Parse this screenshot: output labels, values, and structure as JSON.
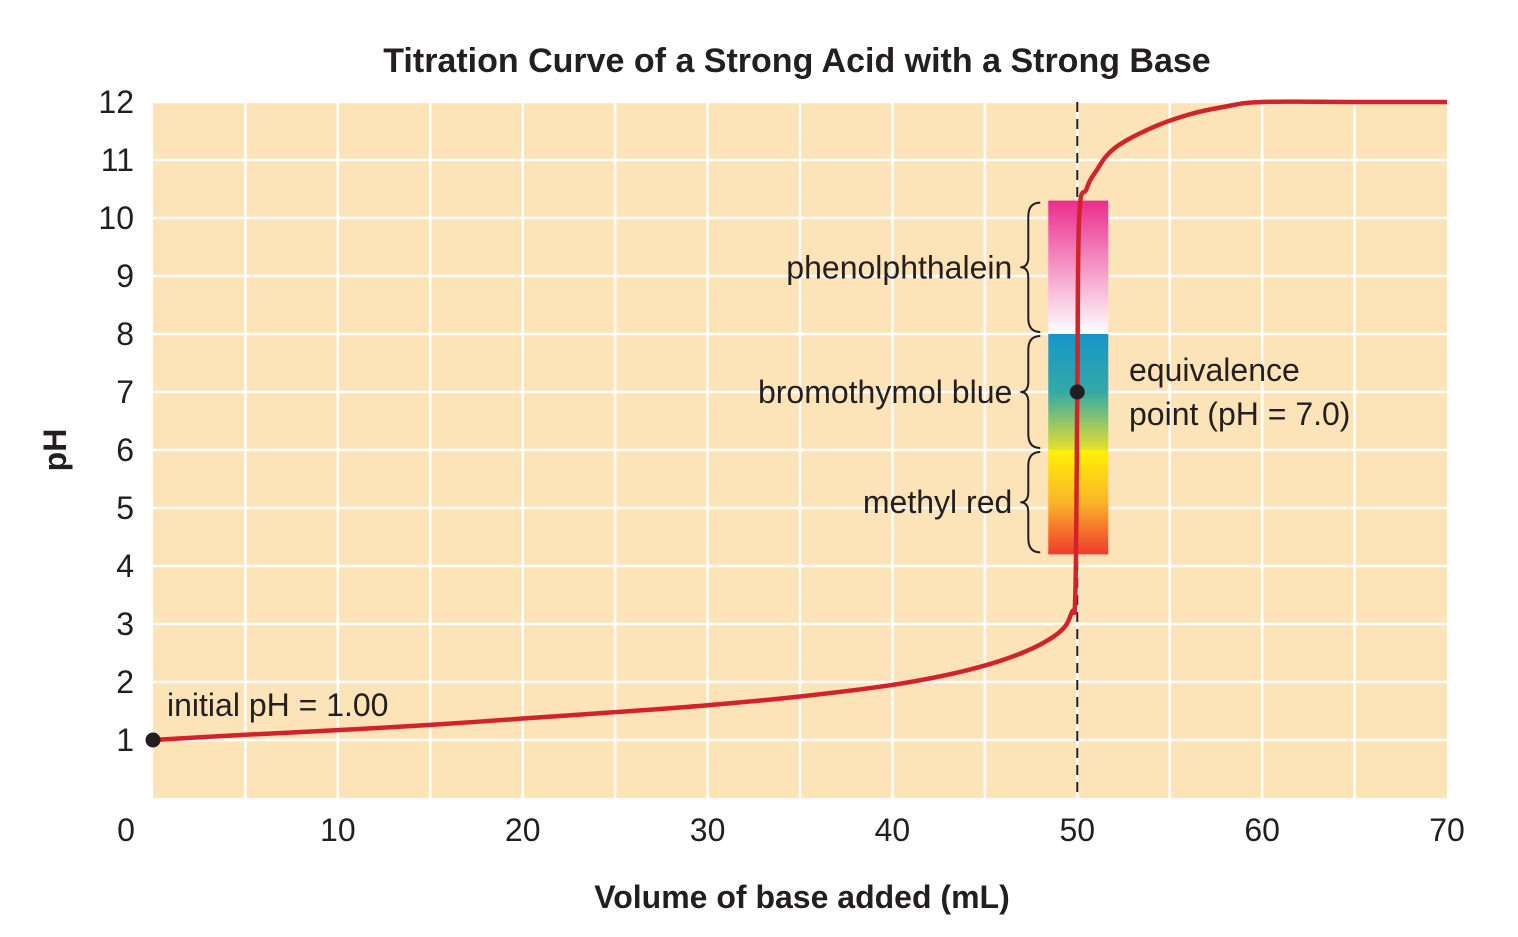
{
  "chart_data": {
    "type": "line",
    "title": "Titration Curve of a Strong Acid with a Strong Base",
    "xlabel": "Volume of base added (mL)",
    "ylabel": "pH",
    "xlim": [
      0,
      70
    ],
    "ylim": [
      0,
      12
    ],
    "x_ticks": [
      0,
      10,
      20,
      30,
      40,
      50,
      60,
      70
    ],
    "y_ticks": [
      1,
      2,
      3,
      4,
      5,
      6,
      7,
      8,
      9,
      10,
      11,
      12
    ],
    "grid": true,
    "series": [
      {
        "color": "#d2232a",
        "points": [
          [
            0,
            1.0
          ],
          [
            5,
            1.09
          ],
          [
            10,
            1.17
          ],
          [
            15,
            1.26
          ],
          [
            20,
            1.37
          ],
          [
            25,
            1.48
          ],
          [
            30,
            1.6
          ],
          [
            35,
            1.75
          ],
          [
            40,
            1.95
          ],
          [
            44,
            2.2
          ],
          [
            47,
            2.5
          ],
          [
            49,
            2.85
          ],
          [
            49.7,
            3.2
          ],
          [
            49.9,
            3.6
          ],
          [
            50,
            7.0
          ],
          [
            50.1,
            10.0
          ],
          [
            50.5,
            10.5
          ],
          [
            51,
            10.8
          ],
          [
            52,
            11.2
          ],
          [
            54,
            11.55
          ],
          [
            56,
            11.78
          ],
          [
            58,
            11.92
          ],
          [
            60,
            12.0
          ],
          [
            65,
            12.0
          ],
          [
            70,
            12.0
          ]
        ]
      }
    ],
    "indicators": [
      {
        "name": "phenolphthalein",
        "ph_range": [
          8.0,
          10.3
        ],
        "colors": [
          "#ffffff",
          "#ea2d8e"
        ]
      },
      {
        "name": "bromothymol blue",
        "ph_range": [
          6.0,
          8.0
        ],
        "colors": [
          "#e8df2f",
          "#34a9a6",
          "#1696c9"
        ]
      },
      {
        "name": "methyl red",
        "ph_range": [
          4.2,
          6.0
        ],
        "colors": [
          "#ee3b2c",
          "#fab52a",
          "#fff200"
        ]
      }
    ],
    "equivalence_point": {
      "x": 50,
      "y": 7.0,
      "label_line1": "equivalence",
      "label_line2": "point (pH = 7.0)"
    },
    "initial_point": {
      "x": 0,
      "y": 1.0,
      "label": "initial pH = 1.00"
    },
    "colors": {
      "plot_bg": "#fde3b8",
      "grid": "#ffffff",
      "curve": "#d2232a",
      "text": "#231f20"
    }
  }
}
